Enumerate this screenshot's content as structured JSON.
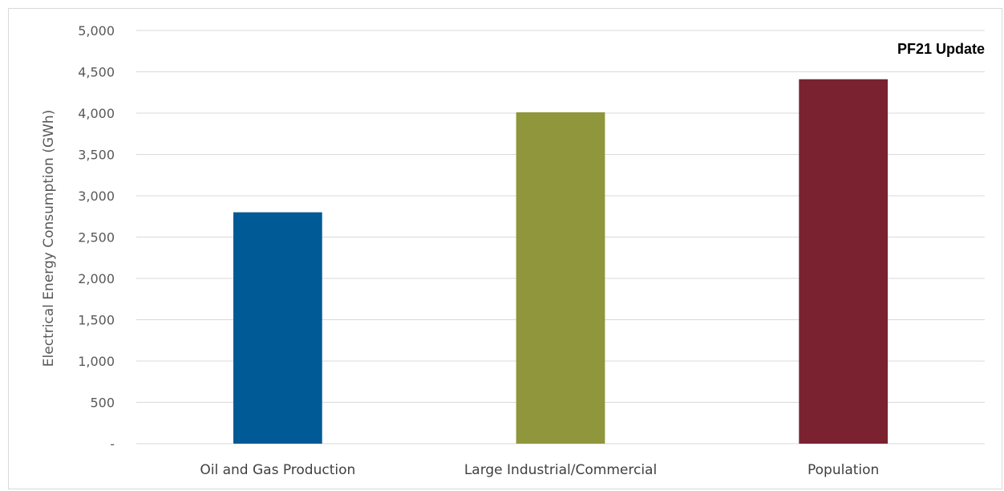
{
  "chart_data": {
    "type": "bar",
    "categories": [
      "Oil and Gas Production",
      "Large Industrial/Commercial",
      "Population"
    ],
    "values": [
      2800,
      4010,
      4410
    ],
    "bar_colors": [
      "#005A96",
      "#8F963C",
      "#7A2230"
    ],
    "title": "",
    "xlabel": "",
    "ylabel": "Electrical Energy Consumption (GWh)",
    "ylim": [
      0,
      5000
    ],
    "yticks": [
      0,
      500,
      1000,
      1500,
      2000,
      2500,
      3000,
      3500,
      4000,
      4500,
      5000
    ],
    "ytick_labels": [
      "-",
      "500",
      "1,000",
      "1,500",
      "2,000",
      "2,500",
      "3,000",
      "3,500",
      "4,000",
      "4,500",
      "5,000"
    ],
    "grid": true,
    "legend": "none",
    "annotation": "PF21 Update"
  }
}
